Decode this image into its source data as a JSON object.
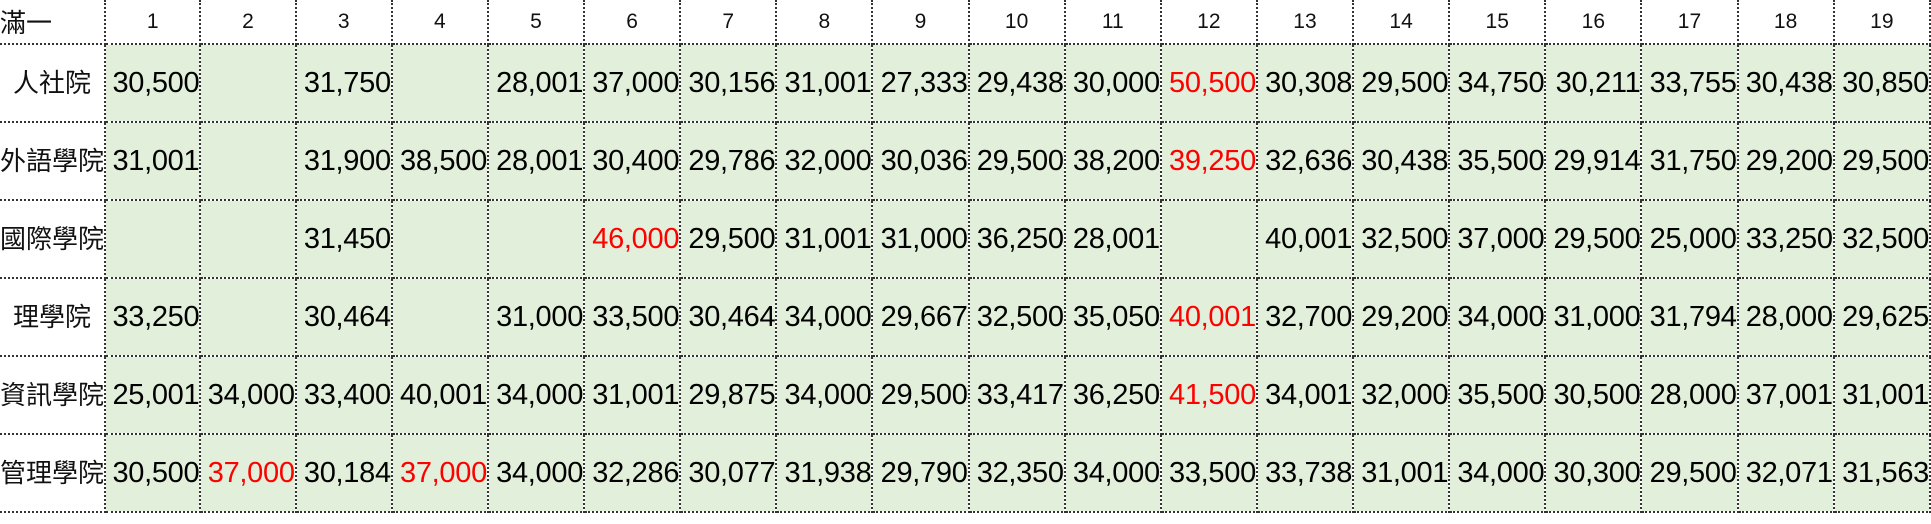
{
  "corner_label": "滿一",
  "highlight_color": "#ff0000",
  "cell_background": "#e2efda",
  "columns": [
    "1",
    "2",
    "3",
    "4",
    "5",
    "6",
    "7",
    "8",
    "9",
    "10",
    "11",
    "12",
    "13",
    "14",
    "15",
    "16",
    "17",
    "18",
    "19"
  ],
  "rows": [
    {
      "label": "人社院",
      "values": [
        "30,500",
        "",
        "31,750",
        "",
        "28,001",
        "37,000",
        "30,156",
        "31,001",
        "27,333",
        "29,438",
        "30,000",
        "50,500",
        "30,308",
        "29,500",
        "34,750",
        "30,211",
        "33,755",
        "30,438",
        "30,850"
      ],
      "highlight": [
        12
      ]
    },
    {
      "label": "外語學院",
      "values": [
        "31,001",
        "",
        "31,900",
        "38,500",
        "28,001",
        "30,400",
        "29,786",
        "32,000",
        "30,036",
        "29,500",
        "38,200",
        "39,250",
        "32,636",
        "30,438",
        "35,500",
        "29,914",
        "31,750",
        "29,200",
        "29,500"
      ],
      "highlight": [
        12
      ]
    },
    {
      "label": "國際學院",
      "values": [
        "",
        "",
        "31,450",
        "",
        "",
        "46,000",
        "29,500",
        "31,001",
        "31,000",
        "36,250",
        "28,001",
        "",
        "40,001",
        "32,500",
        "37,000",
        "29,500",
        "25,000",
        "33,250",
        "32,500"
      ],
      "highlight": [
        6
      ]
    },
    {
      "label": "理學院",
      "values": [
        "33,250",
        "",
        "30,464",
        "",
        "31,000",
        "33,500",
        "30,464",
        "34,000",
        "29,667",
        "32,500",
        "35,050",
        "40,001",
        "32,700",
        "29,200",
        "34,000",
        "31,000",
        "31,794",
        "28,000",
        "29,625"
      ],
      "highlight": [
        12
      ]
    },
    {
      "label": "資訊學院",
      "values": [
        "25,001",
        "34,000",
        "33,400",
        "40,001",
        "34,000",
        "31,001",
        "29,875",
        "34,000",
        "29,500",
        "33,417",
        "36,250",
        "41,500",
        "34,001",
        "32,000",
        "35,500",
        "30,500",
        "28,000",
        "37,001",
        "31,001"
      ],
      "highlight": [
        12
      ]
    },
    {
      "label": "管理學院",
      "values": [
        "30,500",
        "37,000",
        "30,184",
        "37,000",
        "34,000",
        "32,286",
        "30,077",
        "31,938",
        "29,790",
        "32,350",
        "34,000",
        "33,500",
        "33,738",
        "31,001",
        "34,000",
        "30,300",
        "29,500",
        "32,071",
        "31,563"
      ],
      "highlight": [
        2,
        4
      ]
    }
  ]
}
